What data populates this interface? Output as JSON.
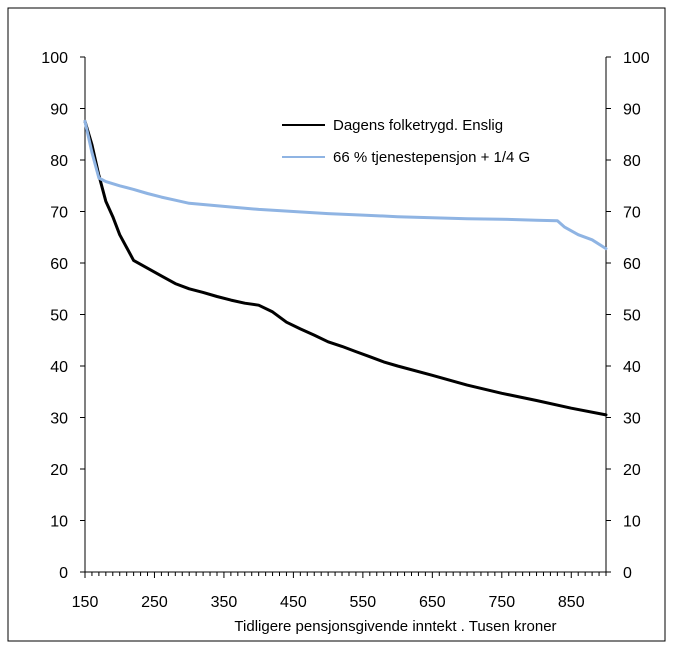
{
  "chart_data": {
    "type": "line",
    "title": "",
    "xlabel": "Tidligere pensjonsgivende inntekt . Tusen kroner",
    "ylabel": "",
    "xlim": [
      150,
      900
    ],
    "ylim": [
      0,
      100
    ],
    "x_ticks": [
      "150",
      "250",
      "350",
      "450",
      "550",
      "650",
      "750",
      "850"
    ],
    "y_ticks": [
      "0",
      "10",
      "20",
      "30",
      "40",
      "50",
      "60",
      "70",
      "80",
      "90",
      "100"
    ],
    "grid": false,
    "legend_position": "top-right",
    "series": [
      {
        "name": "Dagens folketrygd. Enslig",
        "color": "#000000",
        "x": [
          150,
          160,
          170,
          180,
          190,
          200,
          210,
          220,
          240,
          260,
          280,
          300,
          320,
          340,
          360,
          380,
          400,
          420,
          440,
          460,
          480,
          500,
          520,
          540,
          560,
          580,
          600,
          650,
          700,
          750,
          800,
          850,
          900
        ],
        "y": [
          87.5,
          83,
          77,
          72,
          69,
          65.5,
          63,
          60.5,
          59,
          57.5,
          56,
          55,
          54.3,
          53.5,
          52.8,
          52.2,
          51.8,
          50.5,
          48.5,
          47.2,
          46,
          44.7,
          43.8,
          42.8,
          41.8,
          40.8,
          40,
          38.2,
          36.3,
          34.7,
          33.3,
          31.8,
          30.5
        ]
      },
      {
        "name": "66 % tjenestepensjon + 1/4 G",
        "color": "#8fb4e3",
        "x": [
          150,
          160,
          170,
          180,
          200,
          220,
          240,
          260,
          280,
          300,
          350,
          400,
          450,
          500,
          550,
          600,
          650,
          700,
          750,
          800,
          830,
          840,
          860,
          880,
          900
        ],
        "y": [
          87.5,
          81.5,
          76.5,
          75.8,
          75,
          74.3,
          73.5,
          72.8,
          72.2,
          71.6,
          71,
          70.4,
          70,
          69.6,
          69.3,
          69,
          68.8,
          68.6,
          68.5,
          68.3,
          68.2,
          67,
          65.5,
          64.5,
          62.8
        ]
      }
    ]
  }
}
